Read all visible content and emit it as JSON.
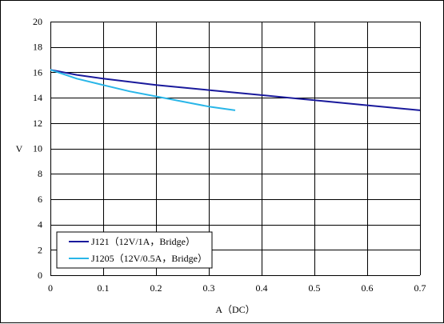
{
  "chart_data": {
    "type": "line",
    "xlabel": "A（DC）",
    "ylabel": "V",
    "xlim": [
      0,
      0.7
    ],
    "ylim": [
      0,
      20
    ],
    "x_ticks": [
      0,
      0.1,
      0.2,
      0.3,
      0.4,
      0.5,
      0.6,
      0.7
    ],
    "x_tick_labels": [
      "0",
      "0.1",
      "0.2",
      "0.3",
      "0.4",
      "0.5",
      "0.6",
      "0.7"
    ],
    "y_ticks": [
      0,
      2,
      4,
      6,
      8,
      10,
      12,
      14,
      16,
      18,
      20
    ],
    "y_tick_labels": [
      "0",
      "2",
      "4",
      "6",
      "8",
      "10",
      "12",
      "14",
      "16",
      "18",
      "20"
    ],
    "grid": true,
    "legend_position": "bottom-left",
    "series": [
      {
        "name": "J121（12V/1A，Bridge）",
        "color": "#1a1a9c",
        "x": [
          0,
          0.05,
          0.1,
          0.2,
          0.3,
          0.4,
          0.5,
          0.6,
          0.7
        ],
        "y": [
          16.2,
          15.8,
          15.5,
          15.0,
          14.6,
          14.2,
          13.8,
          13.4,
          13.0
        ]
      },
      {
        "name": "J1205（12V/0.5A，Bridge）",
        "color": "#29b6e8",
        "x": [
          0,
          0.05,
          0.1,
          0.15,
          0.2,
          0.25,
          0.3,
          0.35
        ],
        "y": [
          16.2,
          15.5,
          15.0,
          14.5,
          14.1,
          13.7,
          13.3,
          13.0
        ]
      }
    ]
  }
}
